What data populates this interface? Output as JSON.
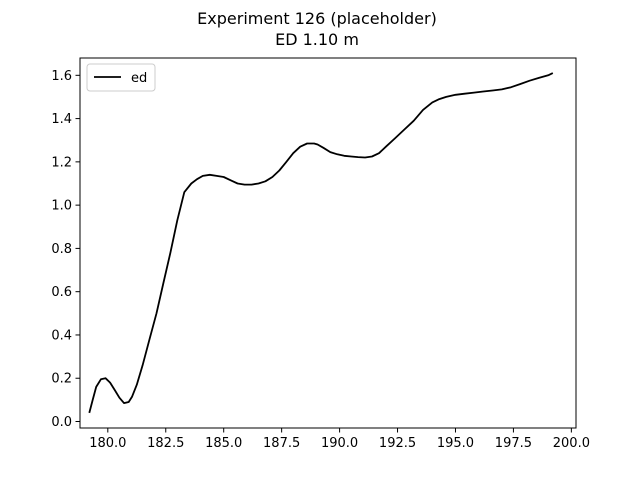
{
  "chart_data": {
    "type": "line",
    "title": "Experiment 126 (placeholder)",
    "subtitle": "ED 1.10 m",
    "xlabel": "",
    "ylabel": "",
    "xlim": [
      178.8,
      200.2
    ],
    "ylim": [
      -0.03,
      1.68
    ],
    "xticks": [
      180.0,
      182.5,
      185.0,
      187.5,
      190.0,
      192.5,
      195.0,
      197.5,
      200.0
    ],
    "xtick_labels": [
      "180.0",
      "182.5",
      "185.0",
      "187.5",
      "190.0",
      "192.5",
      "195.0",
      "197.5",
      "200.0"
    ],
    "yticks": [
      0.0,
      0.2,
      0.4,
      0.6,
      0.8,
      1.0,
      1.2,
      1.4,
      1.6
    ],
    "ytick_labels": [
      "0.0",
      "0.2",
      "0.4",
      "0.6",
      "0.8",
      "1.0",
      "1.2",
      "1.4",
      "1.6"
    ],
    "grid": false,
    "legend_position": "top-left",
    "series": [
      {
        "name": "ed",
        "color": "#000000",
        "x": [
          179.2,
          179.35,
          179.5,
          179.7,
          179.9,
          180.1,
          180.3,
          180.5,
          180.7,
          180.9,
          181.05,
          181.25,
          181.5,
          181.8,
          182.1,
          182.4,
          182.7,
          183.0,
          183.3,
          183.6,
          183.85,
          184.1,
          184.4,
          184.7,
          185.0,
          185.3,
          185.6,
          185.9,
          186.2,
          186.5,
          186.8,
          187.1,
          187.4,
          187.7,
          188.0,
          188.3,
          188.6,
          188.9,
          189.05,
          189.3,
          189.6,
          189.9,
          190.2,
          190.5,
          190.8,
          191.1,
          191.4,
          191.7,
          192.0,
          192.4,
          192.8,
          193.2,
          193.6,
          194.0,
          194.3,
          194.6,
          195.0,
          195.4,
          195.8,
          196.2,
          196.6,
          197.0,
          197.4,
          197.8,
          198.2,
          198.6,
          199.0,
          199.2
        ],
        "y": [
          0.04,
          0.1,
          0.16,
          0.195,
          0.2,
          0.18,
          0.145,
          0.11,
          0.085,
          0.09,
          0.115,
          0.17,
          0.26,
          0.38,
          0.5,
          0.64,
          0.78,
          0.93,
          1.06,
          1.1,
          1.12,
          1.135,
          1.14,
          1.135,
          1.13,
          1.115,
          1.1,
          1.095,
          1.095,
          1.1,
          1.11,
          1.13,
          1.16,
          1.2,
          1.24,
          1.27,
          1.285,
          1.285,
          1.28,
          1.265,
          1.245,
          1.235,
          1.228,
          1.225,
          1.222,
          1.22,
          1.225,
          1.24,
          1.27,
          1.31,
          1.35,
          1.39,
          1.44,
          1.475,
          1.49,
          1.5,
          1.51,
          1.515,
          1.52,
          1.525,
          1.53,
          1.535,
          1.545,
          1.56,
          1.575,
          1.588,
          1.6,
          1.61
        ]
      }
    ]
  }
}
